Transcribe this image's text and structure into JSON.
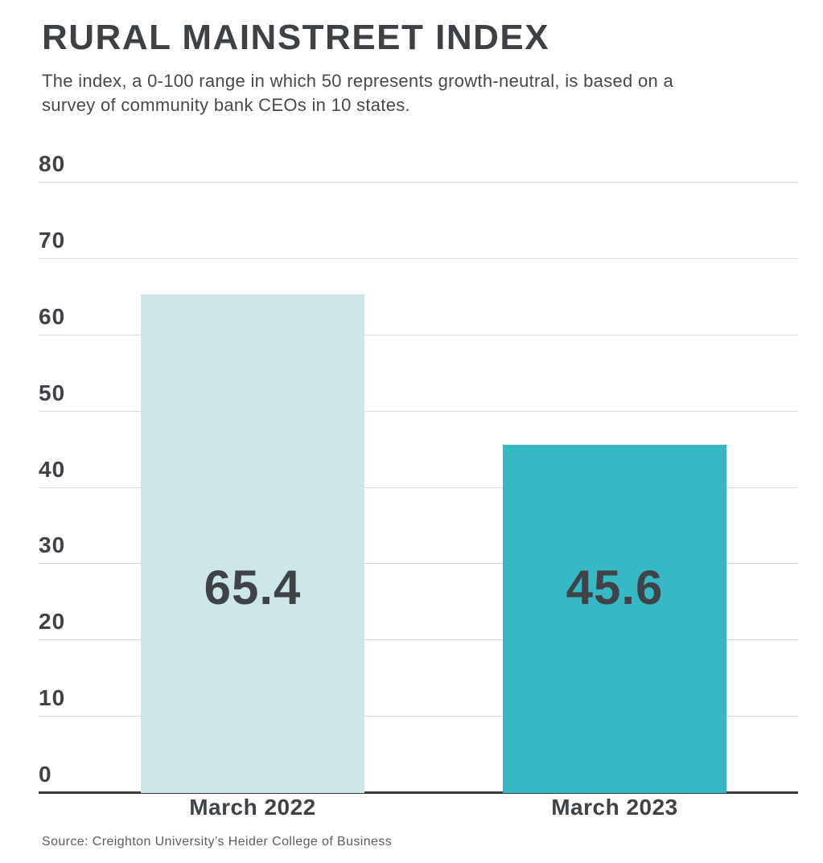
{
  "header": {
    "title": "RURAL MAINSTREET INDEX",
    "subtitle": "The index, a 0-100 range in which 50 represents growth-neutral, is based on a survey of community bank CEOs in 10 states."
  },
  "chart_data": {
    "type": "bar",
    "title": "RURAL MAINSTREET INDEX",
    "subtitle": "The index, a 0-100 range in which 50 represents growth-neutral, is based on a survey of community bank CEOs in 10 states.",
    "categories": [
      "March 2022",
      "March 2023"
    ],
    "values": [
      65.4,
      45.6
    ],
    "value_labels": [
      "65.4",
      "45.6"
    ],
    "bar_colors": [
      "#cde7e9",
      "#36b9c4"
    ],
    "xlabel": "",
    "ylabel": "",
    "ylim": [
      0,
      80
    ],
    "yticks": [
      "0",
      "10",
      "20",
      "30",
      "40",
      "50",
      "60",
      "70",
      "80"
    ],
    "grid": true,
    "legend": "none",
    "colors": {
      "gridline": "#dcdcdc",
      "axis_line": "#393d40",
      "tick_label": "#3f4347",
      "value_label": "#3f4347"
    }
  },
  "footer": {
    "source": "Source: Creighton University’s Heider College of Business"
  }
}
